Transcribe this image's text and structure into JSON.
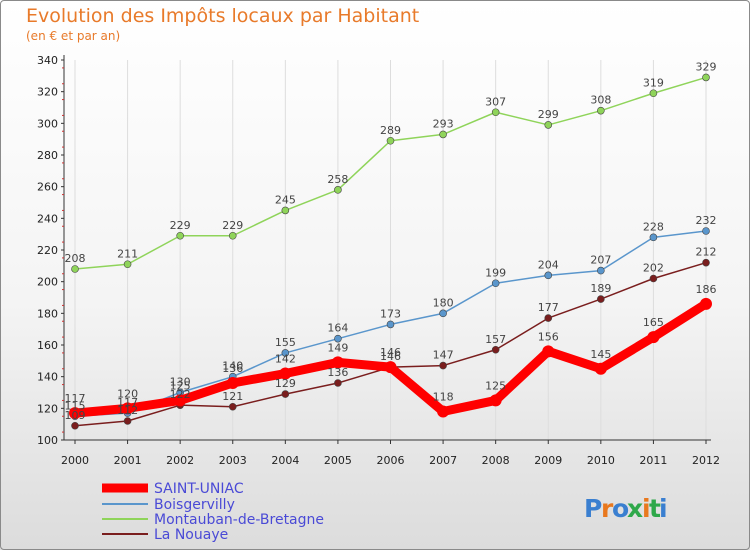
{
  "chart_data": {
    "type": "line",
    "title": "Evolution des Impôts locaux par Habitant",
    "subtitle": "(en € et par an)",
    "xlabel": "",
    "ylabel": "",
    "x": [
      2000,
      2001,
      2002,
      2003,
      2004,
      2005,
      2006,
      2007,
      2008,
      2009,
      2010,
      2011,
      2012
    ],
    "ylim": [
      100,
      340
    ],
    "yticks": [
      100,
      120,
      140,
      160,
      180,
      200,
      220,
      240,
      260,
      280,
      300,
      320,
      340
    ],
    "grid": "vertical",
    "legend_position": "bottom-left",
    "series": [
      {
        "name": "SAINT-UNIAC",
        "color": "#ff0000",
        "values": [
          117,
          120,
          125,
          136,
          142,
          149,
          146,
          118,
          125,
          156,
          145,
          165,
          186
        ]
      },
      {
        "name": "Boisgervilly",
        "color": "#5a96cc",
        "values": [
          115,
          117,
          130,
          140,
          155,
          164,
          173,
          180,
          199,
          204,
          207,
          228,
          232
        ]
      },
      {
        "name": "Montauban-de-Bretagne",
        "color": "#8fd45a",
        "values": [
          208,
          211,
          229,
          229,
          245,
          258,
          289,
          293,
          307,
          299,
          308,
          319,
          329
        ]
      },
      {
        "name": "La Nouaye",
        "color": "#7a1e1e",
        "values": [
          109,
          112,
          122,
          121,
          129,
          136,
          146,
          147,
          157,
          177,
          189,
          202,
          212
        ]
      }
    ]
  },
  "logo_text": "Proxiti"
}
